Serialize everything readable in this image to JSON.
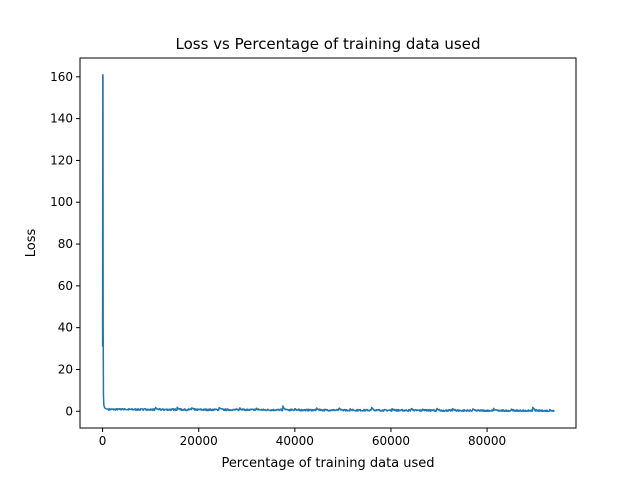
{
  "chart_data": {
    "type": "line",
    "title": "Loss vs Percentage of training data used",
    "xlabel": "Percentage of training data used",
    "ylabel": "Loss",
    "xlim": [
      -4700,
      98500
    ],
    "ylim": [
      -8,
      169
    ],
    "xticks": [
      0,
      20000,
      40000,
      60000,
      80000
    ],
    "yticks": [
      0,
      20,
      40,
      60,
      80,
      100,
      120,
      140,
      160
    ],
    "grid": false,
    "series": [
      {
        "color": "#1f77b4",
        "x_start": 0,
        "x_end": 94000,
        "initial_spike": [
          [
            0,
            31
          ],
          [
            40,
            161
          ],
          [
            80,
            160
          ],
          [
            120,
            40
          ],
          [
            180,
            8
          ],
          [
            260,
            3
          ],
          [
            400,
            1.8
          ],
          [
            700,
            1.2
          ],
          [
            1200,
            0.9
          ]
        ],
        "peaks": [
          [
            4000,
            1.3
          ],
          [
            8500,
            1.5
          ],
          [
            11000,
            2.0
          ],
          [
            15500,
            2.3
          ],
          [
            18500,
            2.1
          ],
          [
            24200,
            2.5
          ],
          [
            28500,
            2.2
          ],
          [
            32000,
            1.6
          ],
          [
            37500,
            2.7
          ],
          [
            40000,
            1.4
          ],
          [
            44500,
            1.9
          ],
          [
            49200,
            1.7
          ],
          [
            51500,
            1.3
          ],
          [
            56000,
            2.0
          ],
          [
            60200,
            1.6
          ],
          [
            64200,
            1.7
          ],
          [
            66500,
            1.2
          ],
          [
            69500,
            1.6
          ],
          [
            72800,
            1.5
          ],
          [
            77000,
            1.4
          ],
          [
            81300,
            1.7
          ],
          [
            85000,
            1.2
          ],
          [
            89500,
            2.3
          ],
          [
            93000,
            1.0
          ]
        ],
        "baseline_start": 0.9,
        "baseline_end": 0.2
      }
    ]
  }
}
